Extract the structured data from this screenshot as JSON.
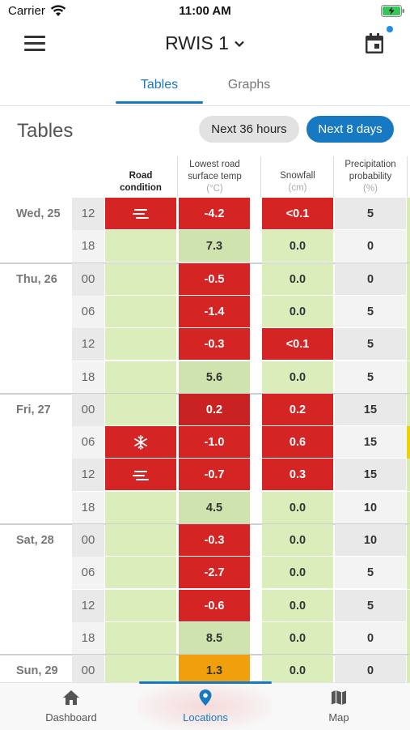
{
  "status": {
    "carrier": "Carrier",
    "time": "11:00 AM"
  },
  "header": {
    "station": "RWIS 1"
  },
  "tabs": {
    "tables": "Tables",
    "graphs": "Graphs"
  },
  "main": {
    "title": "Tables",
    "range_36h": "Next 36 hours",
    "range_8d": "Next 8 days"
  },
  "columns": {
    "road": {
      "line1": "Road",
      "line2": "condition"
    },
    "temp": {
      "line1": "Lowest road",
      "line2": "surface temp",
      "unit": "(°C)"
    },
    "snow": {
      "line1": "Snowfall",
      "unit": "(cm)"
    },
    "precip": {
      "line1": "Precipitation",
      "line2": "probability",
      "unit": "(%)"
    }
  },
  "days": [
    {
      "label": "Wed, 25",
      "rows": [
        {
          "hour": "12",
          "road": "fog-icon",
          "temp": "-4.2",
          "snow": "<0.1",
          "precip": "5"
        },
        {
          "hour": "18",
          "road": "",
          "temp": "7.3",
          "snow": "0.0",
          "precip": "0"
        }
      ]
    },
    {
      "label": "Thu, 26",
      "rows": [
        {
          "hour": "00",
          "road": "",
          "temp": "-0.5",
          "snow": "0.0",
          "precip": "0"
        },
        {
          "hour": "06",
          "road": "",
          "temp": "-1.4",
          "snow": "0.0",
          "precip": "5"
        },
        {
          "hour": "12",
          "road": "",
          "temp": "-0.3",
          "snow": "<0.1",
          "precip": "5"
        },
        {
          "hour": "18",
          "road": "",
          "temp": "5.6",
          "snow": "0.0",
          "precip": "5"
        }
      ]
    },
    {
      "label": "Fri, 27",
      "rows": [
        {
          "hour": "00",
          "road": "",
          "temp": "0.2",
          "snow": "0.2",
          "precip": "15"
        },
        {
          "hour": "06",
          "road": "snowflake-icon",
          "temp": "-1.0",
          "snow": "0.6",
          "precip": "15"
        },
        {
          "hour": "12",
          "road": "fog-icon",
          "temp": "-0.7",
          "snow": "0.3",
          "precip": "15"
        },
        {
          "hour": "18",
          "road": "",
          "temp": "4.5",
          "snow": "0.0",
          "precip": "10"
        }
      ]
    },
    {
      "label": "Sat, 28",
      "rows": [
        {
          "hour": "00",
          "road": "",
          "temp": "-0.3",
          "snow": "0.0",
          "precip": "10"
        },
        {
          "hour": "06",
          "road": "",
          "temp": "-2.7",
          "snow": "0.0",
          "precip": "5"
        },
        {
          "hour": "12",
          "road": "",
          "temp": "-0.6",
          "snow": "0.0",
          "precip": "5"
        },
        {
          "hour": "18",
          "road": "",
          "temp": "8.5",
          "snow": "0.0",
          "precip": "0"
        }
      ]
    },
    {
      "label": "Sun, 29",
      "rows": [
        {
          "hour": "00",
          "road": "",
          "temp": "1.3",
          "snow": "0.0",
          "precip": "0"
        }
      ]
    }
  ],
  "nav": {
    "dashboard": "Dashboard",
    "locations": "Locations",
    "map": "Map"
  },
  "colors": {
    "accent": "#1779c2",
    "alert_red": "#d42424",
    "light_green": "#dcedbc",
    "green": "#cfe3ae",
    "warning_orange": "#f0a00c"
  }
}
